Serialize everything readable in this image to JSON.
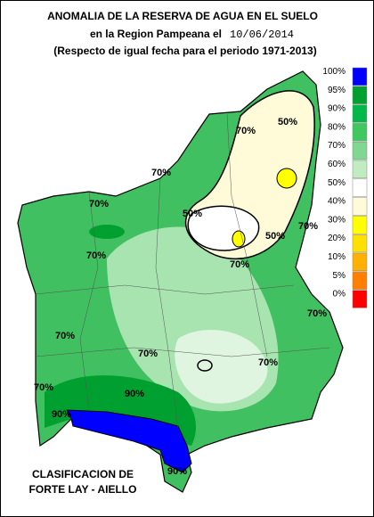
{
  "title": {
    "line1": "ANOMALIA DE LA RESERVA DE AGUA EN EL SUELO",
    "line2": "en la Region Pampeana el",
    "date": "10/06/2014",
    "line3": "(Respecto de igual fecha para el periodo 1971-2013)"
  },
  "legend": [
    {
      "label": "100%",
      "color": "#0000ff"
    },
    {
      "label": "95%",
      "color": "#00a030"
    },
    {
      "label": "90%",
      "color": "#00b848"
    },
    {
      "label": "80%",
      "color": "#40c860"
    },
    {
      "label": "70%",
      "color": "#80d890"
    },
    {
      "label": "60%",
      "color": "#c0ecc0"
    },
    {
      "label": "50%",
      "color": "#ffffff"
    },
    {
      "label": "40%",
      "color": "#fffbd8"
    },
    {
      "label": "30%",
      "color": "#ffff00"
    },
    {
      "label": "20%",
      "color": "#ffe000"
    },
    {
      "label": "10%",
      "color": "#ffb000"
    },
    {
      "label": "5%",
      "color": "#ff8000"
    },
    {
      "label": "0%",
      "color": "#ff0000"
    }
  ],
  "contour_labels": [
    "70%",
    "50%",
    "70%",
    "70%",
    "50%",
    "50%",
    "70%",
    "70%",
    "70%",
    "70%",
    "70%",
    "70%",
    "90%",
    "90%",
    "90%",
    "70%",
    "70%"
  ],
  "credit": {
    "line1": "CLASIFICACION DE",
    "line2": "FORTE LAY - AIELLO"
  }
}
